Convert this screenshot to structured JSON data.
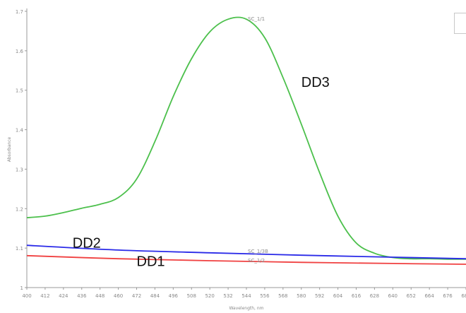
{
  "chart_data": {
    "type": "line",
    "x_tick_labels": [
      "400",
      "412",
      "424",
      "436",
      "448",
      "460",
      "472",
      "484",
      "496",
      "508",
      "520",
      "532",
      "544",
      "556",
      "568",
      "580",
      "592",
      "604",
      "616",
      "628",
      "640",
      "652",
      "664",
      "676",
      "688"
    ],
    "y_tick_labels": [
      {
        "value": 1.7,
        "label": "1.7"
      },
      {
        "value": 1.6,
        "label": "1.6"
      },
      {
        "value": 1.5,
        "label": "1.5"
      },
      {
        "value": 1.4,
        "label": "1.4"
      },
      {
        "value": 1.3,
        "label": "1.3"
      },
      {
        "value": 1.2,
        "label": "1.2"
      },
      {
        "value": 1.1,
        "label": "1.1"
      },
      {
        "value": 1.0,
        "label": "1"
      }
    ],
    "xlabel": "Wavelength, nm",
    "ylabel": "Absorbance",
    "xlim": [
      400,
      688
    ],
    "ylim": [
      1.0,
      1.7
    ],
    "grid": false,
    "series": [
      {
        "name": "DD3",
        "color": "#4cc04c",
        "x": [
          400,
          412,
          424,
          436,
          448,
          460,
          472,
          484,
          496,
          508,
          520,
          532,
          544,
          556,
          568,
          580,
          592,
          604,
          616,
          628,
          640,
          652,
          664,
          676,
          688
        ],
        "values": [
          1.177,
          1.181,
          1.19,
          1.201,
          1.211,
          1.228,
          1.275,
          1.37,
          1.484,
          1.58,
          1.648,
          1.68,
          1.68,
          1.633,
          1.532,
          1.414,
          1.291,
          1.181,
          1.113,
          1.087,
          1.076,
          1.073,
          1.073,
          1.072,
          1.072
        ]
      },
      {
        "name": "DD2",
        "color": "#2a2ae8",
        "x": [
          400,
          460,
          520,
          580,
          640,
          688
        ],
        "values": [
          1.107,
          1.095,
          1.088,
          1.082,
          1.077,
          1.073
        ]
      },
      {
        "name": "DD1",
        "color": "#f04040",
        "x": [
          400,
          460,
          520,
          580,
          640,
          688
        ],
        "values": [
          1.081,
          1.073,
          1.068,
          1.064,
          1.061,
          1.059
        ]
      }
    ],
    "annotations": [
      {
        "text": "SC_1/1",
        "x": 544,
        "y": 1.68
      },
      {
        "text": "SC_1/3B",
        "x": 544,
        "y": 1.091
      },
      {
        "text": "SC_1/2",
        "x": 544,
        "y": 1.068
      }
    ],
    "series_labels": [
      {
        "text": "DD3",
        "x": 580,
        "y": 1.508
      },
      {
        "text": "DD2",
        "x": 430,
        "y": 1.101
      },
      {
        "text": "DD1",
        "x": 472,
        "y": 1.055
      }
    ]
  }
}
